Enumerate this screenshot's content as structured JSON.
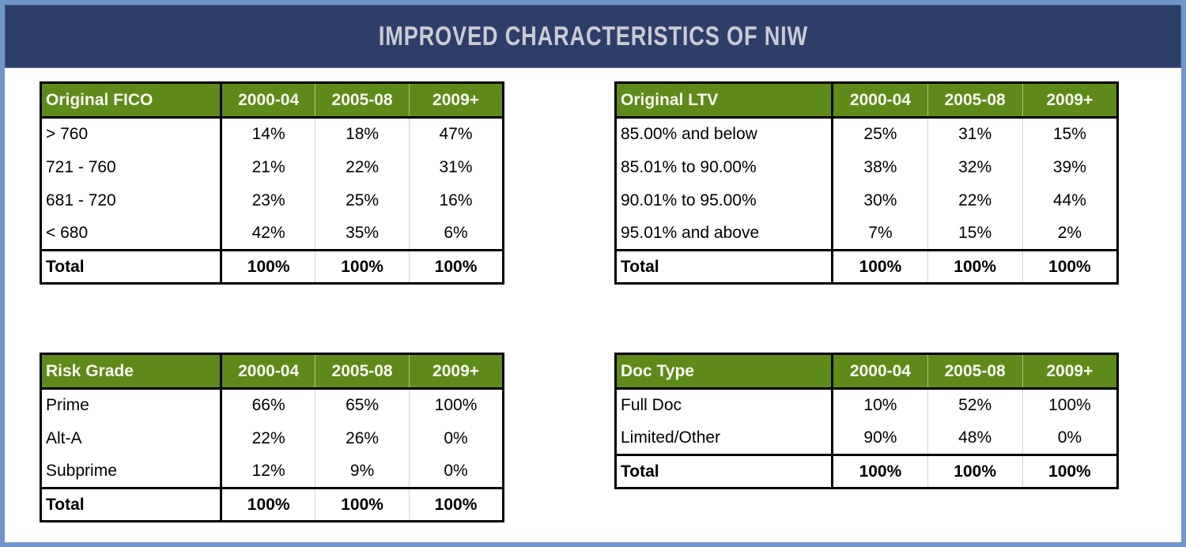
{
  "title": "IMPROVED CHARACTERISTICS OF NIW",
  "colors": {
    "frame_blue": "#7095cb",
    "title_bar_navy": "#2d3f69",
    "title_text": "#c9ccd2",
    "table_header_green": "#5e8a1a",
    "table_header_text": "#f8f9f1",
    "table_border": "#000000",
    "column_divider_light": "#d5d5cf"
  },
  "columns": [
    "2000-04",
    "2005-08",
    "2009+"
  ],
  "tables": [
    {
      "title": "Original FICO",
      "rows": [
        {
          "label": "> 760",
          "values": [
            "14%",
            "18%",
            "47%"
          ]
        },
        {
          "label": "721 - 760",
          "values": [
            "21%",
            "22%",
            "31%"
          ]
        },
        {
          "label": "681 - 720",
          "values": [
            "23%",
            "25%",
            "16%"
          ]
        },
        {
          "label": "< 680",
          "values": [
            "42%",
            "35%",
            "6%"
          ]
        }
      ],
      "total": {
        "label": "Total",
        "values": [
          "100%",
          "100%",
          "100%"
        ]
      }
    },
    {
      "title": "Original LTV",
      "rows": [
        {
          "label": "85.00% and below",
          "values": [
            "25%",
            "31%",
            "15%"
          ]
        },
        {
          "label": "85.01% to 90.00%",
          "values": [
            "38%",
            "32%",
            "39%"
          ]
        },
        {
          "label": "90.01% to 95.00%",
          "values": [
            "30%",
            "22%",
            "44%"
          ]
        },
        {
          "label": "95.01% and above",
          "values": [
            "7%",
            "15%",
            "2%"
          ]
        }
      ],
      "total": {
        "label": "Total",
        "values": [
          "100%",
          "100%",
          "100%"
        ]
      }
    },
    {
      "title": "Risk Grade",
      "rows": [
        {
          "label": "Prime",
          "values": [
            "66%",
            "65%",
            "100%"
          ]
        },
        {
          "label": "Alt-A",
          "values": [
            "22%",
            "26%",
            "0%"
          ]
        },
        {
          "label": "Subprime",
          "values": [
            "12%",
            "9%",
            "0%"
          ]
        }
      ],
      "total": {
        "label": "Total",
        "values": [
          "100%",
          "100%",
          "100%"
        ]
      }
    },
    {
      "title": "Doc Type",
      "rows": [
        {
          "label": "Full Doc",
          "values": [
            "10%",
            "52%",
            "100%"
          ]
        },
        {
          "label": "Limited/Other",
          "values": [
            "90%",
            "48%",
            "0%"
          ]
        }
      ],
      "total": {
        "label": "Total",
        "values": [
          "100%",
          "100%",
          "100%"
        ]
      }
    }
  ]
}
